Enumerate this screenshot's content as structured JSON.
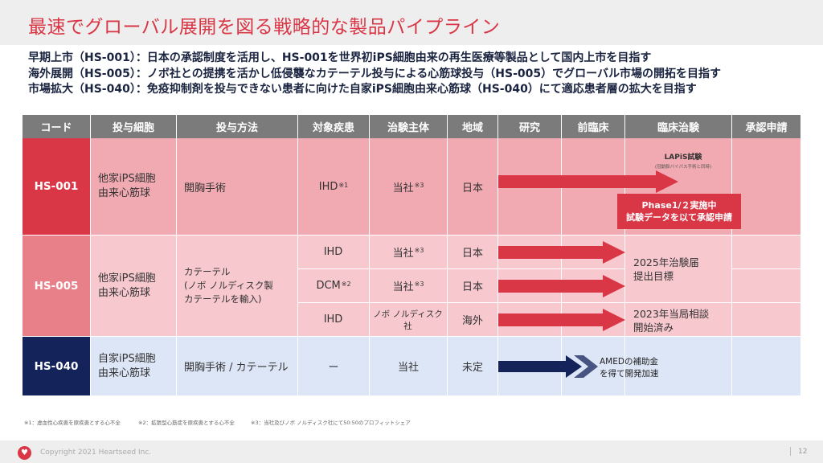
{
  "title": "最速でグローバル展開を図る戦略的な製品パイプライン",
  "subtitles": [
    "早期上市（HS-001）：日本の承認制度を活用し、HS-001を世界初iPS細胞由来の再生医療等製品として国内上市を目指す",
    "海外展開（HS-005）：ノボ社との提携を活かし低侵襲なカテーテル投与による心筋球投与（HS-005）でグローバル市場の開拓を目指す",
    "市場拡大（HS-040）：免疫抑制剤を投与できない患者に向けた自家iPS細胞由来心筋球（HS-040）にて適応患者層の拡大を目指す"
  ],
  "table": {
    "headers": [
      "コード",
      "投与細胞",
      "投与方法",
      "対象疾患",
      "治験主体",
      "地域",
      "研究",
      "前臨床",
      "臨床治験",
      "承認申請"
    ],
    "rows": [
      {
        "code": "HS-001",
        "cells": "他家iPS細胞\n由来心筋球",
        "method": "開胸手術",
        "subrows": [
          {
            "disease": "IHD",
            "disease_note": "※1",
            "sponsor": "当社",
            "sponsor_note": "※3",
            "region": "日本"
          }
        ]
      },
      {
        "code": "HS-005",
        "cells": "他家iPS細胞\n由来心筋球",
        "method": "カテーテル\n(ノボ ノルディスク製\nカテーテルを輸入)",
        "subrows": [
          {
            "disease": "IHD",
            "disease_note": "",
            "sponsor": "当社",
            "sponsor_note": "※3",
            "region": "日本"
          },
          {
            "disease": "DCM",
            "disease_note": "※2",
            "sponsor": "当社",
            "sponsor_note": "※3",
            "region": "日本"
          },
          {
            "disease": "IHD",
            "disease_note": "",
            "sponsor": "ノボ ノルディスク社",
            "sponsor_note": "",
            "region": "海外"
          }
        ]
      },
      {
        "code": "HS-040",
        "cells": "自家iPS細胞\n由来心筋球",
        "method": "開胸手術 / カテーテル",
        "subrows": [
          {
            "disease": "ー",
            "disease_note": "",
            "sponsor": "当社",
            "sponsor_note": "",
            "region": "未定"
          }
        ]
      }
    ]
  },
  "annotations": {
    "lapis_title": "LAPiS試験",
    "lapis_sub": "(冠動脈バイパス手術と同時)",
    "phase_line1": "Phase1/２実施中",
    "phase_line2": "試験データを以て承認申請",
    "hs005_target": "2025年治験届\n提出目標",
    "hs005_overseas": "2023年当局相談\n開始済み",
    "amed": "AMEDの補助金\nを得て開発加速"
  },
  "footnotes": [
    "※1：虚血性心疾患を原疾患とする心不全",
    "※2：拡張型心筋症を原疾患とする心不全",
    "※3：当社及びノボ ノルディスク社にて50:50のプロフィットシェア"
  ],
  "footer": {
    "copyright": "Copyright 2021 Heartseed Inc.",
    "page": "12"
  },
  "colors": {
    "accent": "#d93646",
    "header_gray": "#7b7b7b",
    "hs001_code": "#d93646",
    "hs001_bg": "#f2aab2",
    "hs005_code": "#e8808a",
    "hs005_bg": "#f7c8cd",
    "hs040_code": "#14235a",
    "hs040_bg": "#dde6f7",
    "navy_arrow": "#14235a"
  },
  "icons": {
    "logo": "heart-icon"
  }
}
